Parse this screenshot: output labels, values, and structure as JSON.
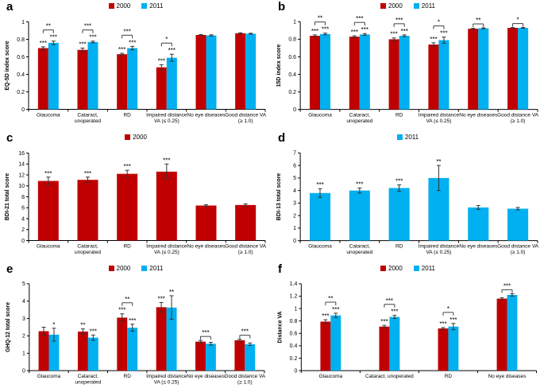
{
  "figure": {
    "background": "#ffffff",
    "series_color_2000": "#C00000",
    "series_color_2011": "#00B0F0",
    "axis_color": "#000000",
    "error_bar_color": "#333333",
    "bracket_color": "#404040"
  },
  "chart_data": [
    {
      "panel_letter": "a",
      "type": "bar",
      "ylabel": "EQ-5D index score",
      "ylim": [
        0,
        1
      ],
      "yticks": [
        0,
        0.2,
        0.4,
        0.6,
        0.8,
        1
      ],
      "ytick_labels": [
        "0",
        "0.2",
        "0.4",
        "0.6",
        "0.8",
        "1"
      ],
      "legend_position": "top-center",
      "grid": false,
      "series": [
        {
          "name": "2000",
          "color": "#C00000"
        },
        {
          "name": "2011",
          "color": "#00B0F0"
        }
      ],
      "groups": [
        {
          "label": [
            "Glaucoma"
          ],
          "values": [
            0.7,
            0.76
          ],
          "errors": [
            0.015,
            0.02
          ],
          "stars": [
            "***",
            "***"
          ],
          "bracket": "**"
        },
        {
          "label": [
            "Cataract,",
            "unoperated"
          ],
          "values": [
            0.68,
            0.77
          ],
          "errors": [
            0.02,
            0.01
          ],
          "stars": [
            "***",
            "***"
          ],
          "bracket": "***"
        },
        {
          "label": [
            "RD"
          ],
          "values": [
            0.63,
            0.7
          ],
          "errors": [
            0.01,
            0.02
          ],
          "stars": [
            "***",
            "***"
          ],
          "bracket": "***"
        },
        {
          "label": [
            "Impaired distance",
            "VA (≤ 0.25)"
          ],
          "values": [
            0.48,
            0.59
          ],
          "errors": [
            0.03,
            0.04
          ],
          "stars": [
            "***",
            "***"
          ],
          "bracket": "*"
        },
        {
          "label": [
            "No eye diseases"
          ],
          "values": [
            0.85,
            0.845
          ],
          "errors": [
            0.005,
            0.007
          ],
          "stars": [
            "",
            ""
          ],
          "bracket": ""
        },
        {
          "label": [
            "Good distance VA",
            "(≥ 1.0)"
          ],
          "values": [
            0.87,
            0.865
          ],
          "errors": [
            0.005,
            0.005
          ],
          "stars": [
            "",
            ""
          ],
          "bracket": ""
        }
      ]
    },
    {
      "panel_letter": "b",
      "type": "bar",
      "ylabel": "15D index score",
      "ylim": [
        0,
        1
      ],
      "yticks": [
        0,
        0.2,
        0.4,
        0.6,
        0.8,
        1
      ],
      "ytick_labels": [
        "0",
        "0.2",
        "0.4",
        "0.6",
        "0.8",
        "1"
      ],
      "legend_position": "top-center",
      "grid": false,
      "series": [
        {
          "name": "2000",
          "color": "#C00000"
        },
        {
          "name": "2011",
          "color": "#00B0F0"
        }
      ],
      "groups": [
        {
          "label": [
            "Glaucoma"
          ],
          "values": [
            0.84,
            0.86
          ],
          "errors": [
            0.01,
            0.01
          ],
          "stars": [
            "***",
            "***"
          ],
          "bracket": "**"
        },
        {
          "label": [
            "Cataract,",
            "unoperated"
          ],
          "values": [
            0.83,
            0.855
          ],
          "errors": [
            0.01,
            0.01
          ],
          "stars": [
            "***",
            "***"
          ],
          "bracket": "***"
        },
        {
          "label": [
            "RD"
          ],
          "values": [
            0.8,
            0.84
          ],
          "errors": [
            0.015,
            0.01
          ],
          "stars": [
            "***",
            "***"
          ],
          "bracket": "***"
        },
        {
          "label": [
            "Impaired distance",
            "VA (≤ 0.25)"
          ],
          "values": [
            0.74,
            0.79
          ],
          "errors": [
            0.02,
            0.035
          ],
          "stars": [
            "***",
            "***"
          ],
          "bracket": "*"
        },
        {
          "label": [
            "No eye diseases"
          ],
          "values": [
            0.92,
            0.925
          ],
          "errors": [
            0.005,
            0.005
          ],
          "stars": [
            "",
            ""
          ],
          "bracket": "**"
        },
        {
          "label": [
            "Good distance VA",
            "(≥ 1.0)"
          ],
          "values": [
            0.93,
            0.93
          ],
          "errors": [
            0.004,
            0.004
          ],
          "stars": [
            "",
            ""
          ],
          "bracket": "*"
        }
      ]
    },
    {
      "panel_letter": "c",
      "type": "bar",
      "ylabel": "BDI-21 total score",
      "ylim": [
        0,
        16
      ],
      "yticks": [
        0,
        2,
        4,
        6,
        8,
        10,
        12,
        14,
        16
      ],
      "ytick_labels": [
        "0",
        "2",
        "4",
        "6",
        "8",
        "10",
        "12",
        "14",
        "16"
      ],
      "legend_position": "top-center",
      "grid": false,
      "series": [
        {
          "name": "2000",
          "color": "#C00000"
        }
      ],
      "groups": [
        {
          "label": [
            "Glaucoma"
          ],
          "values": [
            10.9
          ],
          "errors": [
            0.7
          ],
          "stars": [
            "***"
          ],
          "bracket": ""
        },
        {
          "label": [
            "Cataract,",
            "unoperated"
          ],
          "values": [
            11.1
          ],
          "errors": [
            0.5
          ],
          "stars": [
            "***"
          ],
          "bracket": ""
        },
        {
          "label": [
            "RD"
          ],
          "values": [
            12.2
          ],
          "errors": [
            0.65
          ],
          "stars": [
            "***"
          ],
          "bracket": ""
        },
        {
          "label": [
            "Impaired distance",
            "VA (≤ 0.25)"
          ],
          "values": [
            12.6
          ],
          "errors": [
            1.4
          ],
          "stars": [
            "***"
          ],
          "bracket": ""
        },
        {
          "label": [
            "No eye diseases"
          ],
          "values": [
            6.4
          ],
          "errors": [
            0.15
          ],
          "stars": [
            ""
          ],
          "bracket": ""
        },
        {
          "label": [
            "Good distance VA",
            "(≥ 1.0)"
          ],
          "values": [
            6.5
          ],
          "errors": [
            0.2
          ],
          "stars": [
            ""
          ],
          "bracket": ""
        }
      ]
    },
    {
      "panel_letter": "d",
      "type": "bar",
      "ylabel": "BDI-13 total score",
      "ylim": [
        0,
        7
      ],
      "yticks": [
        0,
        1,
        2,
        3,
        4,
        5,
        6,
        7
      ],
      "ytick_labels": [
        "0",
        "1",
        "2",
        "3",
        "4",
        "5",
        "6",
        "7"
      ],
      "legend_position": "top-center",
      "grid": false,
      "series": [
        {
          "name": "2011",
          "color": "#00B0F0"
        }
      ],
      "groups": [
        {
          "label": [
            "Glaucoma"
          ],
          "values": [
            3.8
          ],
          "errors": [
            0.35
          ],
          "stars": [
            "***"
          ],
          "bracket": ""
        },
        {
          "label": [
            "Cataract,",
            "unoperated"
          ],
          "values": [
            4.0
          ],
          "errors": [
            0.2
          ],
          "stars": [
            "***"
          ],
          "bracket": ""
        },
        {
          "label": [
            "RD"
          ],
          "values": [
            4.2
          ],
          "errors": [
            0.25
          ],
          "stars": [
            "***"
          ],
          "bracket": ""
        },
        {
          "label": [
            "Impaired distance",
            "VA (≤ 0.25)"
          ],
          "values": [
            5.0
          ],
          "errors": [
            1.0
          ],
          "stars": [
            "**"
          ],
          "bracket": ""
        },
        {
          "label": [
            "No eye diseases"
          ],
          "values": [
            2.65
          ],
          "errors": [
            0.15
          ],
          "stars": [
            ""
          ],
          "bracket": ""
        },
        {
          "label": [
            "Good distance VA",
            "(≥ 1.0)"
          ],
          "values": [
            2.55
          ],
          "errors": [
            0.1
          ],
          "stars": [
            ""
          ],
          "bracket": ""
        }
      ]
    },
    {
      "panel_letter": "e",
      "type": "bar",
      "ylabel": "GHQ-12 total score",
      "ylim": [
        0,
        5
      ],
      "yticks": [
        0,
        1,
        2,
        3,
        4,
        5
      ],
      "ytick_labels": [
        "0",
        "1",
        "2",
        "3",
        "4",
        "5"
      ],
      "legend_position": "top-center",
      "grid": false,
      "series": [
        {
          "name": "2000",
          "color": "#C00000"
        },
        {
          "name": "2011",
          "color": "#00B0F0"
        }
      ],
      "groups": [
        {
          "label": [
            "Glaucoma"
          ],
          "values": [
            2.27,
            2.07
          ],
          "errors": [
            0.23,
            0.37
          ],
          "stars": [
            "",
            "*"
          ],
          "bracket": ""
        },
        {
          "label": [
            "Cataract,",
            "unoperated"
          ],
          "values": [
            2.25,
            1.9
          ],
          "errors": [
            0.15,
            0.15
          ],
          "stars": [
            "**",
            "***"
          ],
          "bracket": ""
        },
        {
          "label": [
            "RD"
          ],
          "values": [
            3.05,
            2.47
          ],
          "errors": [
            0.22,
            0.2
          ],
          "stars": [
            "***",
            "***"
          ],
          "bracket": "**"
        },
        {
          "label": [
            "Impaired distance",
            "VA (≤ 0.25)"
          ],
          "values": [
            3.65,
            3.63
          ],
          "errors": [
            0.27,
            0.68
          ],
          "stars": [
            "***",
            "**"
          ],
          "bracket": ""
        },
        {
          "label": [
            "No eye diseases"
          ],
          "values": [
            1.67,
            1.55
          ],
          "errors": [
            0.07,
            0.08
          ],
          "stars": [
            "",
            ""
          ],
          "bracket": "***"
        },
        {
          "label": [
            "Good distance VA",
            "(≥ 1.0)"
          ],
          "values": [
            1.75,
            1.52
          ],
          "errors": [
            0.06,
            0.07
          ],
          "stars": [
            "",
            ""
          ],
          "bracket": "***"
        }
      ]
    },
    {
      "panel_letter": "f",
      "type": "bar",
      "ylabel": "Distance VA",
      "ylim": [
        0,
        1.4
      ],
      "yticks": [
        0,
        0.2,
        0.4,
        0.6,
        0.8,
        1,
        1.2,
        1.4
      ],
      "ytick_labels": [
        "0",
        "0.2",
        "0.4",
        "0.6",
        "0.8",
        "1",
        "1.2",
        "1.4"
      ],
      "legend_position": "top-center",
      "grid": false,
      "series": [
        {
          "name": "2000",
          "color": "#C00000"
        },
        {
          "name": "2011",
          "color": "#00B0F0"
        }
      ],
      "groups": [
        {
          "label": [
            "Glaucoma"
          ],
          "values": [
            0.79,
            0.89
          ],
          "errors": [
            0.03,
            0.035
          ],
          "stars": [
            "***",
            "***"
          ],
          "bracket": "**"
        },
        {
          "label": [
            "Cataract, unoperated"
          ],
          "values": [
            0.71,
            0.865
          ],
          "errors": [
            0.02,
            0.025
          ],
          "stars": [
            "***",
            "***"
          ],
          "bracket": "***"
        },
        {
          "label": [
            "RD"
          ],
          "values": [
            0.68,
            0.71
          ],
          "errors": [
            0.015,
            0.05
          ],
          "stars": [
            "***",
            "***"
          ],
          "bracket": "*"
        },
        {
          "label": [
            "No eye diseases"
          ],
          "values": [
            1.16,
            1.22
          ],
          "errors": [
            0.015,
            0.02
          ],
          "stars": [
            "",
            ""
          ],
          "bracket": "***"
        }
      ]
    }
  ]
}
